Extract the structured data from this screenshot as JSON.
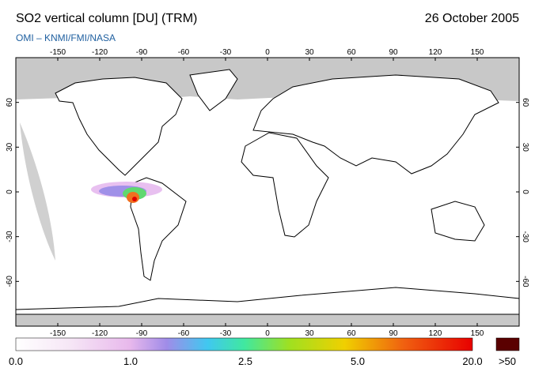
{
  "header": {
    "title": "SO2 vertical column [DU] (TRM)",
    "date": "26 October 2005",
    "subtitle": "OMI  –  KNMI/FMI/NASA"
  },
  "map": {
    "lonlim": [
      -180,
      180
    ],
    "latlim": [
      90,
      -90
    ],
    "lonticks": [
      -150,
      -120,
      -90,
      -60,
      -30,
      0,
      30,
      60,
      90,
      120,
      150
    ],
    "latticks": [
      60,
      30,
      0,
      -30,
      -60
    ]
  },
  "colorbar": {
    "labels": [
      "0.0",
      "1.0",
      "2.5",
      "5.0",
      "20.0",
      ">50"
    ]
  }
}
